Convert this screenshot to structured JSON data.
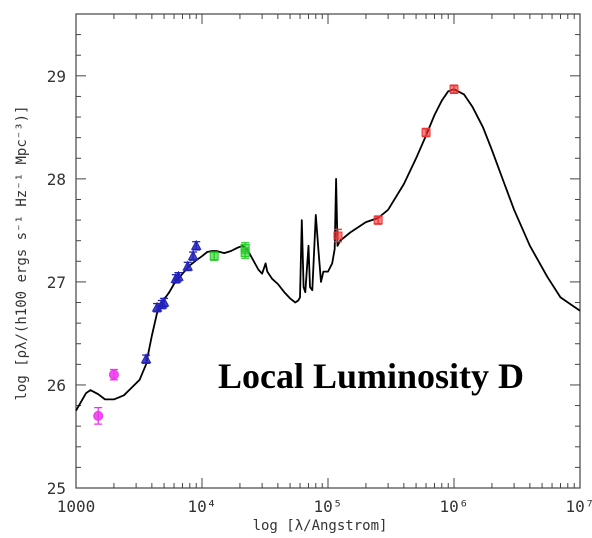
{
  "chart_data": {
    "type": "line",
    "title": "",
    "xlabel": "log [λ/Angstrom]",
    "ylabel": "log [ρλ/(h100 ergs s⁻¹ Hz⁻¹ Mpc⁻³)]",
    "x_scale": "log",
    "xlim": [
      1000,
      10000000
    ],
    "ylim": [
      25,
      29.6
    ],
    "x_ticks": [
      {
        "value": 1000,
        "label": "1000"
      },
      {
        "value": 10000,
        "label": "10⁴"
      },
      {
        "value": 100000,
        "label": "10⁵"
      },
      {
        "value": 1000000,
        "label": "10⁶"
      },
      {
        "value": 10000000,
        "label": "10⁷"
      }
    ],
    "y_ticks": [
      {
        "value": 25,
        "label": "25"
      },
      {
        "value": 26,
        "label": "26"
      },
      {
        "value": 27,
        "label": "27"
      },
      {
        "value": 28,
        "label": "28"
      },
      {
        "value": 29,
        "label": "29"
      }
    ],
    "grid": false,
    "annotation": "Local Luminosity D",
    "series": [
      {
        "role": "model-sed",
        "color": "#000000",
        "points": [
          [
            1000,
            25.75
          ],
          [
            1200,
            25.92
          ],
          [
            1300,
            25.95
          ],
          [
            1500,
            25.91
          ],
          [
            1700,
            25.86
          ],
          [
            2000,
            25.86
          ],
          [
            2400,
            25.9
          ],
          [
            2800,
            25.98
          ],
          [
            3200,
            26.05
          ],
          [
            3600,
            26.2
          ],
          [
            4000,
            26.48
          ],
          [
            4400,
            26.7
          ],
          [
            5000,
            26.83
          ],
          [
            5500,
            26.9
          ],
          [
            6000,
            26.98
          ],
          [
            7000,
            27.08
          ],
          [
            8000,
            27.16
          ],
          [
            9000,
            27.21
          ],
          [
            10000,
            27.25
          ],
          [
            11000,
            27.29
          ],
          [
            12000,
            27.3
          ],
          [
            13000,
            27.3
          ],
          [
            15000,
            27.28
          ],
          [
            17000,
            27.3
          ],
          [
            19000,
            27.33
          ],
          [
            21000,
            27.35
          ],
          [
            23000,
            27.31
          ],
          [
            25000,
            27.23
          ],
          [
            28000,
            27.12
          ],
          [
            30000,
            27.08
          ],
          [
            32000,
            27.18
          ],
          [
            33000,
            27.1
          ],
          [
            36000,
            27.03
          ],
          [
            40000,
            26.98
          ],
          [
            45000,
            26.9
          ],
          [
            50000,
            26.84
          ],
          [
            55000,
            26.8
          ],
          [
            58000,
            26.82
          ],
          [
            60000,
            26.85
          ],
          [
            62000,
            27.6
          ],
          [
            64000,
            26.95
          ],
          [
            66000,
            26.9
          ],
          [
            70000,
            27.35
          ],
          [
            72000,
            26.95
          ],
          [
            75000,
            26.92
          ],
          [
            80000,
            27.65
          ],
          [
            84000,
            27.3
          ],
          [
            88000,
            27.0
          ],
          [
            92000,
            27.1
          ],
          [
            100000,
            27.1
          ],
          [
            108000,
            27.18
          ],
          [
            113000,
            27.32
          ],
          [
            116000,
            28.0
          ],
          [
            119000,
            27.35
          ],
          [
            125000,
            27.4
          ],
          [
            150000,
            27.48
          ],
          [
            200000,
            27.58
          ],
          [
            250000,
            27.62
          ],
          [
            300000,
            27.7
          ],
          [
            400000,
            27.95
          ],
          [
            500000,
            28.2
          ],
          [
            600000,
            28.42
          ],
          [
            700000,
            28.62
          ],
          [
            800000,
            28.76
          ],
          [
            900000,
            28.85
          ],
          [
            1000000,
            28.87
          ],
          [
            1200000,
            28.82
          ],
          [
            1400000,
            28.7
          ],
          [
            1700000,
            28.5
          ],
          [
            2000000,
            28.28
          ],
          [
            2500000,
            27.96
          ],
          [
            3000000,
            27.7
          ],
          [
            4000000,
            27.35
          ],
          [
            5500000,
            27.05
          ],
          [
            7000000,
            26.85
          ],
          [
            10000000,
            26.72
          ]
        ]
      },
      {
        "role": "magenta-points",
        "color": "#ee33ee",
        "marker": "circle",
        "points": [
          {
            "x": 1500,
            "y": 25.7,
            "err": 0.08
          },
          {
            "x": 2000,
            "y": 26.1,
            "err": 0.05
          }
        ]
      },
      {
        "role": "blue-points",
        "color": "#2222bb",
        "marker": "triangle",
        "points": [
          {
            "x": 3600,
            "y": 26.25,
            "err": 0.04
          },
          {
            "x": 4400,
            "y": 26.75,
            "err": 0.04
          },
          {
            "x": 4800,
            "y": 26.78,
            "err": 0.04
          },
          {
            "x": 5000,
            "y": 26.8,
            "err": 0.04
          },
          {
            "x": 6200,
            "y": 27.03,
            "err": 0.04
          },
          {
            "x": 6500,
            "y": 27.05,
            "err": 0.04
          },
          {
            "x": 7700,
            "y": 27.15,
            "err": 0.04
          },
          {
            "x": 8500,
            "y": 27.25,
            "err": 0.04
          },
          {
            "x": 9000,
            "y": 27.35,
            "err": 0.04
          }
        ]
      },
      {
        "role": "green-points",
        "color": "#22cc22",
        "marker": "square",
        "points": [
          {
            "x": 12500,
            "y": 27.25,
            "err": 0.04
          },
          {
            "x": 22000,
            "y": 27.33,
            "err": 0.05
          },
          {
            "x": 22000,
            "y": 27.28,
            "err": 0.05
          }
        ]
      },
      {
        "role": "red-points",
        "color": "#ee3333",
        "marker": "square",
        "points": [
          {
            "x": 120000,
            "y": 27.45,
            "err": 0.06
          },
          {
            "x": 250000,
            "y": 27.6,
            "err": 0.04
          },
          {
            "x": 600000,
            "y": 28.45,
            "err": 0.04
          },
          {
            "x": 1000000,
            "y": 28.87,
            "err": 0.04
          }
        ]
      }
    ]
  }
}
